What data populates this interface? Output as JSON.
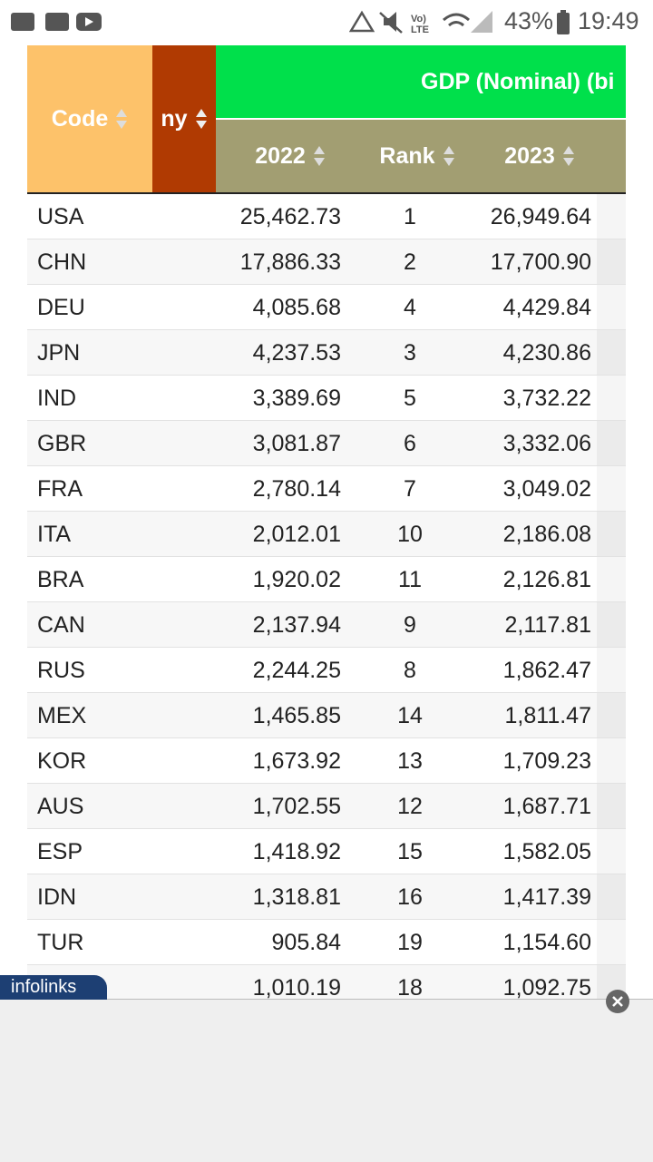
{
  "status_bar": {
    "battery": "43%",
    "time": "19:49"
  },
  "table": {
    "headers": {
      "code": "Code",
      "economy": "ny",
      "group": "GDP (Nominal) (bi",
      "col_2022": "2022",
      "rank": "Rank",
      "col_2023": "2023"
    },
    "rows": [
      {
        "code": "USA",
        "gdp_2022": "25,462.73",
        "rank": 1,
        "gdp_2023": "26,949.64"
      },
      {
        "code": "CHN",
        "gdp_2022": "17,886.33",
        "rank": 2,
        "gdp_2023": "17,700.90"
      },
      {
        "code": "DEU",
        "gdp_2022": "4,085.68",
        "rank": 4,
        "gdp_2023": "4,429.84"
      },
      {
        "code": "JPN",
        "gdp_2022": "4,237.53",
        "rank": 3,
        "gdp_2023": "4,230.86"
      },
      {
        "code": "IND",
        "gdp_2022": "3,389.69",
        "rank": 5,
        "gdp_2023": "3,732.22"
      },
      {
        "code": "GBR",
        "gdp_2022": "3,081.87",
        "rank": 6,
        "gdp_2023": "3,332.06"
      },
      {
        "code": "FRA",
        "gdp_2022": "2,780.14",
        "rank": 7,
        "gdp_2023": "3,049.02"
      },
      {
        "code": "ITA",
        "gdp_2022": "2,012.01",
        "rank": 10,
        "gdp_2023": "2,186.08"
      },
      {
        "code": "BRA",
        "gdp_2022": "1,920.02",
        "rank": 11,
        "gdp_2023": "2,126.81"
      },
      {
        "code": "CAN",
        "gdp_2022": "2,137.94",
        "rank": 9,
        "gdp_2023": "2,117.81"
      },
      {
        "code": "RUS",
        "gdp_2022": "2,244.25",
        "rank": 8,
        "gdp_2023": "1,862.47"
      },
      {
        "code": "MEX",
        "gdp_2022": "1,465.85",
        "rank": 14,
        "gdp_2023": "1,811.47"
      },
      {
        "code": "KOR",
        "gdp_2022": "1,673.92",
        "rank": 13,
        "gdp_2023": "1,709.23"
      },
      {
        "code": "AUS",
        "gdp_2022": "1,702.55",
        "rank": 12,
        "gdp_2023": "1,687.71"
      },
      {
        "code": "ESP",
        "gdp_2022": "1,418.92",
        "rank": 15,
        "gdp_2023": "1,582.05"
      },
      {
        "code": "IDN",
        "gdp_2022": "1,318.81",
        "rank": 16,
        "gdp_2023": "1,417.39"
      },
      {
        "code": "TUR",
        "gdp_2022": "905.84",
        "rank": 19,
        "gdp_2023": "1,154.60"
      },
      {
        "gdp_2022": "1,010.19",
        "rank": 18,
        "gdp_2023": "1,092.75"
      }
    ]
  },
  "ad": {
    "badge": "infolinks"
  }
}
